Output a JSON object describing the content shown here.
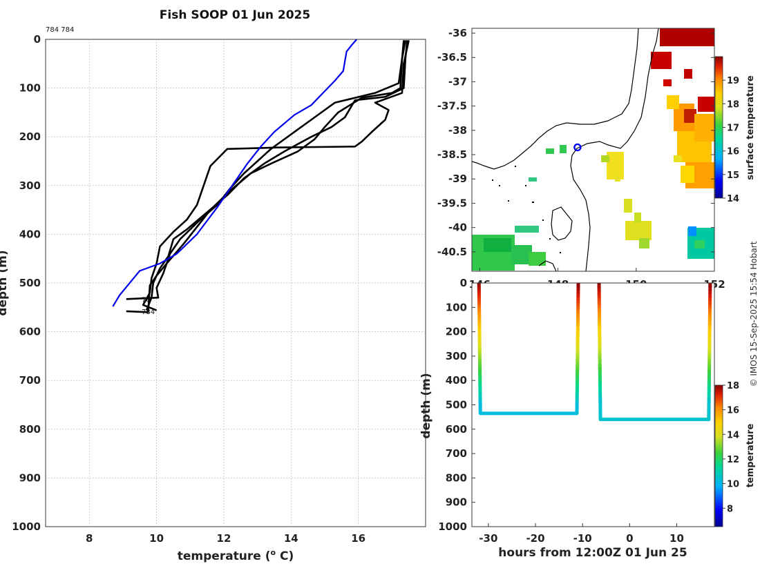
{
  "title": "Fish SOOP 01 Jun 2025",
  "profile_ids_label": "784 784",
  "credit": "© IMOS 15-Sep-2025 15:54 Hobart",
  "chart_data": [
    {
      "id": "profiles",
      "type": "line",
      "xlabel": "temperature (° C)",
      "xlabel_main": "temperature (",
      "xlabel_sup": "o",
      "xlabel_tail": " C)",
      "ylabel": "depth (m)",
      "xlim": [
        6.7,
        18.0
      ],
      "ylim": [
        0,
        1000
      ],
      "y_reversed": true,
      "grid": true,
      "xticks": [
        8,
        10,
        12,
        14,
        16
      ],
      "yticks": [
        0,
        100,
        200,
        300,
        400,
        500,
        600,
        700,
        800,
        900,
        1000
      ],
      "climatology": {
        "name": "climatology",
        "color": "#0000ee",
        "points": [
          [
            15.95,
            0
          ],
          [
            15.8,
            12
          ],
          [
            15.65,
            25
          ],
          [
            15.6,
            45
          ],
          [
            15.55,
            65
          ],
          [
            15.3,
            85
          ],
          [
            14.95,
            110
          ],
          [
            14.6,
            135
          ],
          [
            14.1,
            155
          ],
          [
            13.5,
            190
          ],
          [
            13.1,
            220
          ],
          [
            12.7,
            255
          ],
          [
            12.3,
            295
          ],
          [
            11.8,
            345
          ],
          [
            11.2,
            400
          ],
          [
            10.6,
            440
          ],
          [
            10.1,
            460
          ],
          [
            9.5,
            475
          ],
          [
            9.2,
            500
          ],
          [
            8.9,
            525
          ],
          [
            8.7,
            548
          ]
        ]
      },
      "series": [
        {
          "name": "784",
          "color": "#000000",
          "points": [
            [
              17.35,
              2
            ],
            [
              17.3,
              40
            ],
            [
              17.2,
              90
            ],
            [
              16.5,
              110
            ],
            [
              15.3,
              130
            ],
            [
              14.6,
              165
            ],
            [
              14.2,
              185
            ],
            [
              13.8,
              205
            ],
            [
              13.4,
              225
            ],
            [
              13.0,
              250
            ],
            [
              12.6,
              275
            ],
            [
              12.2,
              305
            ],
            [
              11.8,
              340
            ],
            [
              11.3,
              370
            ],
            [
              10.7,
              410
            ],
            [
              10.4,
              440
            ],
            [
              10.2,
              480
            ],
            [
              10.0,
              510
            ],
            [
              10.05,
              530
            ],
            [
              9.1,
              533
            ]
          ]
        },
        {
          "name": "784",
          "color": "#000000",
          "points": [
            [
              17.4,
              2
            ],
            [
              17.3,
              40
            ],
            [
              17.25,
              100
            ],
            [
              17.0,
              110
            ],
            [
              16.1,
              120
            ],
            [
              15.4,
              150
            ],
            [
              15.0,
              180
            ],
            [
              14.7,
              205
            ],
            [
              14.2,
              230
            ],
            [
              13.4,
              255
            ],
            [
              12.8,
              275
            ],
            [
              12.2,
              310
            ],
            [
              11.6,
              350
            ],
            [
              11.2,
              385
            ],
            [
              10.8,
              420
            ],
            [
              10.3,
              460
            ],
            [
              10.0,
              485
            ],
            [
              9.8,
              505
            ],
            [
              9.75,
              560
            ],
            [
              9.1,
              558
            ]
          ]
        },
        {
          "name": "784",
          "color": "#000000",
          "points": [
            [
              17.45,
              2
            ],
            [
              17.4,
              40
            ],
            [
              17.35,
              100
            ],
            [
              16.8,
              118
            ],
            [
              15.9,
              125
            ],
            [
              15.6,
              160
            ],
            [
              15.2,
              180
            ],
            [
              14.6,
              200
            ],
            [
              13.8,
              230
            ],
            [
              13.2,
              255
            ],
            [
              12.6,
              285
            ],
            [
              12.1,
              320
            ],
            [
              11.5,
              355
            ],
            [
              10.9,
              390
            ],
            [
              10.5,
              410
            ],
            [
              10.35,
              445
            ],
            [
              10.1,
              470
            ],
            [
              9.9,
              500
            ],
            [
              9.85,
              530
            ],
            [
              9.7,
              556
            ]
          ]
        },
        {
          "name": "784",
          "color": "#000000",
          "points": [
            [
              17.5,
              2
            ],
            [
              17.35,
              50
            ],
            [
              17.3,
              110
            ],
            [
              16.5,
              130
            ],
            [
              16.9,
              145
            ],
            [
              16.8,
              165
            ],
            [
              16.4,
              190
            ],
            [
              16.1,
              210
            ],
            [
              15.9,
              220
            ],
            [
              13.6,
              222
            ],
            [
              12.1,
              225
            ],
            [
              11.6,
              260
            ],
            [
              11.4,
              300
            ],
            [
              11.2,
              340
            ],
            [
              10.9,
              370
            ],
            [
              10.5,
              395
            ],
            [
              10.1,
              425
            ],
            [
              10.0,
              460
            ],
            [
              9.85,
              490
            ],
            [
              9.8,
              520
            ],
            [
              9.6,
              545
            ],
            [
              10.0,
              556
            ]
          ]
        }
      ],
      "profile_labels": [
        {
          "text": "78",
          "temperature": 9.35,
          "depth": 533
        },
        {
          "text": "784",
          "temperature": 9.35,
          "depth": 558
        }
      ]
    },
    {
      "id": "sst_map",
      "type": "heatmap",
      "colorbar_label": "surface temperature",
      "lon_ticks": [
        146,
        148,
        150,
        152
      ],
      "lat_ticks": [
        -36,
        -36.5,
        -37,
        -37.5,
        -38,
        -38.5,
        -39,
        -39.5,
        -40,
        -40.5
      ],
      "lon_range": [
        145.8,
        152.0
      ],
      "lat_range": [
        -40.9,
        -35.9
      ],
      "colorbar_range": [
        14,
        20
      ],
      "colorbar_ticks": [
        14,
        15,
        16,
        17,
        18,
        19
      ],
      "cruise_position": {
        "lon": 148.5,
        "lat": -38.35,
        "color": "#0000ee"
      }
    },
    {
      "id": "depth_time",
      "type": "scatter",
      "xlabel": "hours from 12:00Z 01 Jun 25",
      "ylabel": "depth (m)",
      "xlim": [
        -33.5,
        18.0
      ],
      "ylim": [
        0,
        1000
      ],
      "y_reversed": true,
      "xticks": [
        -30,
        -20,
        -10,
        0,
        10
      ],
      "yticks": [
        0,
        100,
        200,
        300,
        400,
        500,
        600,
        700,
        800,
        900,
        1000
      ],
      "colorbar_label": "temperature",
      "colorbar_range": [
        6.5,
        18
      ],
      "colorbar_ticks": [
        8,
        10,
        12,
        14,
        16,
        18
      ],
      "casts": [
        {
          "descent": [
            [
              -32.0,
              0
            ],
            [
              -31.7,
              535
            ]
          ],
          "bottom": [
            [
              -31.7,
              535
            ],
            [
              -11.2,
              535
            ]
          ],
          "ascent": [
            [
              -11.2,
              535
            ],
            [
              -10.9,
              0
            ]
          ],
          "bottom_temperature": 10.3
        },
        {
          "descent": [
            [
              -6.5,
              0
            ],
            [
              -6.2,
              560
            ]
          ],
          "bottom": [
            [
              -6.2,
              560
            ],
            [
              16.8,
              560
            ]
          ],
          "ascent": [
            [
              16.8,
              560
            ],
            [
              17.1,
              0
            ]
          ],
          "bottom_temperature": 10.5
        }
      ]
    }
  ]
}
